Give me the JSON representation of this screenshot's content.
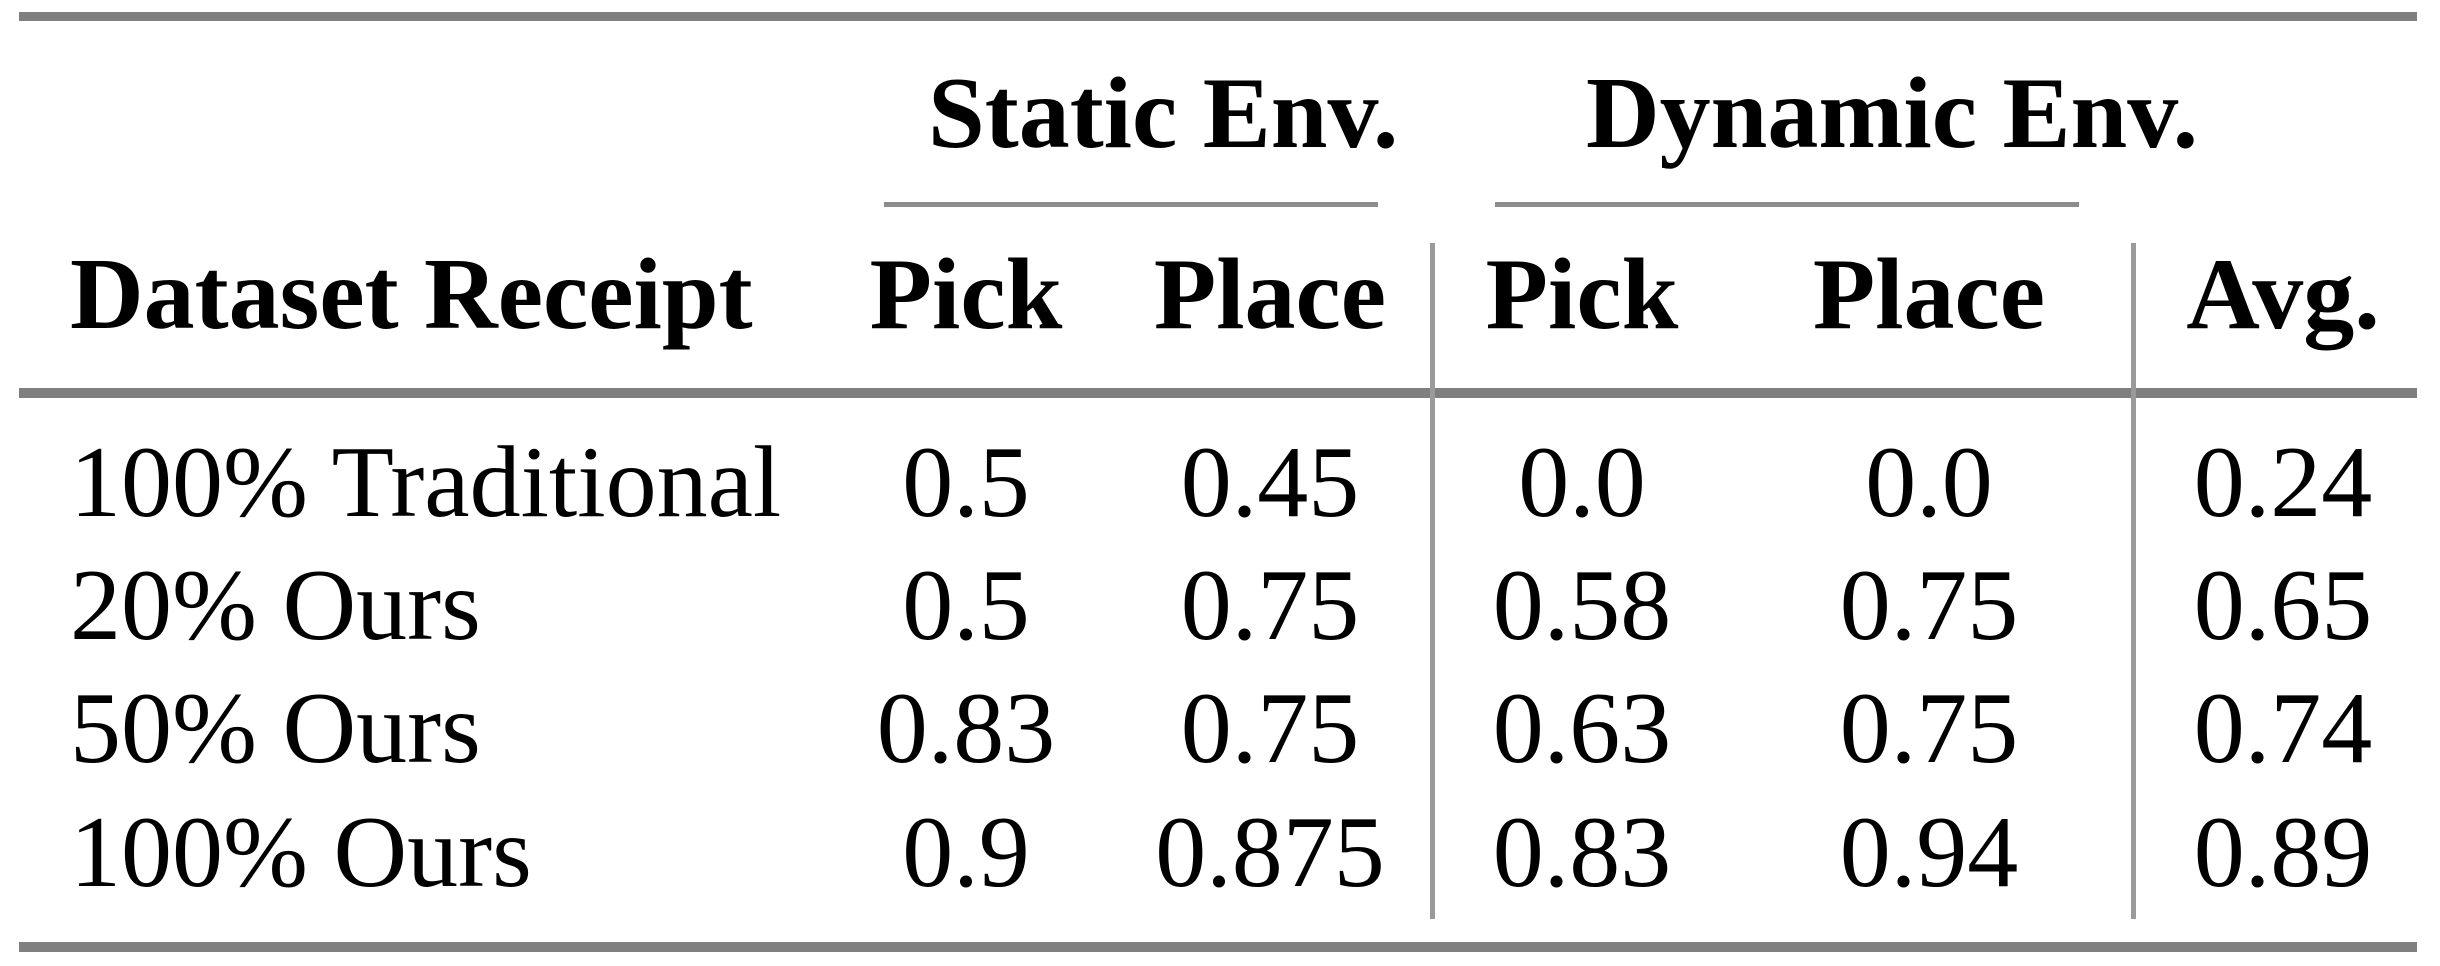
{
  "table": {
    "groups": [
      {
        "label": "Static Env."
      },
      {
        "label": "Dynamic Env."
      }
    ],
    "columns": [
      "Dataset Receipt",
      "Pick",
      "Place",
      "Pick",
      "Place",
      "Avg."
    ],
    "rows": [
      {
        "label": "100% Traditional",
        "cells": [
          "0.5",
          "0.45",
          "0.0",
          "0.0",
          "0.24"
        ]
      },
      {
        "label": "20% Ours",
        "cells": [
          "0.5",
          "0.75",
          "0.58",
          "0.75",
          "0.65"
        ]
      },
      {
        "label": "50% Ours",
        "cells": [
          "0.83",
          "0.75",
          "0.63",
          "0.75",
          "0.74"
        ]
      },
      {
        "label": "100% Ours",
        "cells": [
          "0.9",
          "0.875",
          "0.83",
          "0.94",
          "0.89"
        ]
      }
    ],
    "colors": {
      "thick_rule": "#7f7f7f",
      "thin_rule": "#8d8d8d",
      "column_divider": "#9a9a9a",
      "text": "#000000",
      "background": "#ffffff"
    }
  }
}
